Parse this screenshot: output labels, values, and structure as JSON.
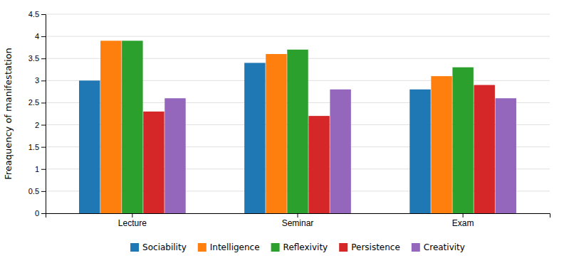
{
  "chart_data": {
    "type": "bar",
    "ylabel": "Freaquency of manifestation",
    "categories": [
      "Lecture",
      "Seminar",
      "Exam"
    ],
    "series": [
      {
        "name": "Sociability",
        "values": [
          3.0,
          3.4,
          2.8
        ]
      },
      {
        "name": "Intelligence",
        "values": [
          3.9,
          3.6,
          3.1
        ]
      },
      {
        "name": "Reflexivity",
        "values": [
          3.9,
          3.7,
          3.3
        ]
      },
      {
        "name": "Persistence",
        "values": [
          2.3,
          2.2,
          2.9
        ]
      },
      {
        "name": "Creativity",
        "values": [
          2.6,
          2.8,
          2.6
        ]
      }
    ],
    "ylim": [
      0,
      4.5
    ],
    "yticks": [
      0,
      0.5,
      1.0,
      1.5,
      2.0,
      2.5,
      3.0,
      3.5,
      4.0,
      4.5
    ],
    "grid": true,
    "legend": "bottom"
  }
}
